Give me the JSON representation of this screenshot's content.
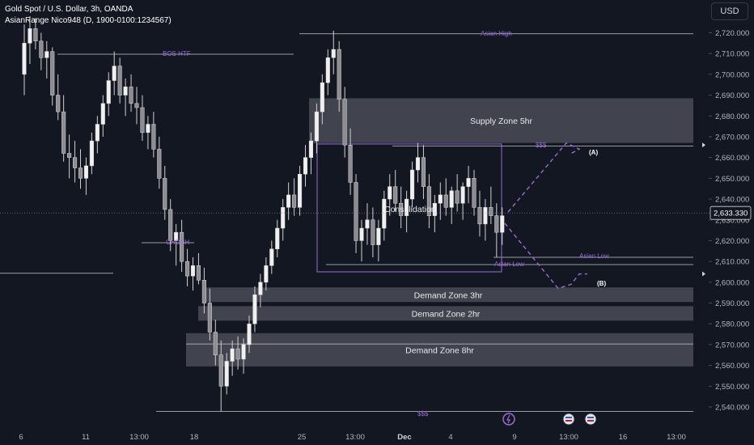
{
  "header": {
    "title": "Gold Spot / U.S. Dollar, 3h, OANDA",
    "indicator": "AsianRange Nico948 (D, 1900-0100:1234567)",
    "currency_button": "USD"
  },
  "colors": {
    "background": "#131722",
    "candle": "#e6e6e6",
    "wick": "#d0d0d0",
    "zone_fill": "#4a4c56",
    "zone_stroke": "#787b86",
    "purple": "#9a6bd8",
    "level_line": "#c8c9cf",
    "axis_text": "#b2b5be"
  },
  "chart_data": {
    "type": "candlestick",
    "title": "Gold Spot / U.S. Dollar, 3h, OANDA",
    "ylim": [
      2534,
      2732
    ],
    "y_ticks": [
      2540,
      2550,
      2560,
      2570,
      2580,
      2590,
      2600,
      2610,
      2620,
      2630,
      2640,
      2650,
      2660,
      2670,
      2680,
      2690,
      2700,
      2710,
      2720
    ],
    "y_tick_labels": [
      "2,540.000",
      "2,550.000",
      "2,560.000",
      "2,570.000",
      "2,580.000",
      "2,590.000",
      "2,600.000",
      "2,610.000",
      "2,620.000",
      "2,630.000",
      "2,640.000",
      "2,650.000",
      "2,660.000",
      "2,670.000",
      "2,680.000",
      "2,690.000",
      "2,700.000",
      "2,710.000",
      "2,720.000"
    ],
    "current_price": 2633.33,
    "current_price_label": "2,633.330",
    "x_tick_labels": [
      "6",
      "11",
      "13:00",
      "18",
      "25",
      "13:00",
      "Dec",
      "4",
      "9",
      "13:00",
      "16",
      "13:00"
    ],
    "grid": false,
    "levels": [
      {
        "label": "Asian High",
        "value": 2719.5
      },
      {
        "label": "BOS HTF",
        "value": 2709.7
      },
      {
        "label": "$$$",
        "value": 2665.5
      },
      {
        "label": "CHOCH",
        "value": 2619.0
      },
      {
        "label": "Asian Low",
        "value": 2612.0
      },
      {
        "label": "Asian Low",
        "value": 2608.5
      },
      {
        "label": "",
        "value": 2604.3
      },
      {
        "label": "",
        "value": 2570.3
      },
      {
        "label": "$$$",
        "value": 2537.8
      }
    ],
    "zones": [
      {
        "label": "Supply Zone 5hr",
        "low": 2667.0,
        "high": 2688.5
      },
      {
        "label": "Demand Zone 3hr",
        "low": 2590.5,
        "high": 2597.5
      },
      {
        "label": "Demand Zone 2hr",
        "low": 2581.5,
        "high": 2588.5
      },
      {
        "label": "Demand Zone 8hr",
        "low": 2559.5,
        "high": 2575.5
      }
    ],
    "box": {
      "label": "Consolidation",
      "low": 2605.0,
      "high": 2666.5
    },
    "scenario_labels": [
      "(A)",
      "(B)"
    ],
    "candles": [
      {
        "o": 2700,
        "h": 2724,
        "l": 2690,
        "c": 2715
      },
      {
        "o": 2715,
        "h": 2728,
        "l": 2705,
        "c": 2722
      },
      {
        "o": 2722,
        "h": 2727,
        "l": 2712,
        "c": 2716
      },
      {
        "o": 2716,
        "h": 2720,
        "l": 2702,
        "c": 2708
      },
      {
        "o": 2708,
        "h": 2716,
        "l": 2698,
        "c": 2711
      },
      {
        "o": 2711,
        "h": 2713,
        "l": 2685,
        "c": 2690
      },
      {
        "o": 2690,
        "h": 2700,
        "l": 2678,
        "c": 2682
      },
      {
        "o": 2682,
        "h": 2690,
        "l": 2658,
        "c": 2662
      },
      {
        "o": 2662,
        "h": 2671,
        "l": 2650,
        "c": 2660
      },
      {
        "o": 2660,
        "h": 2668,
        "l": 2648,
        "c": 2655
      },
      {
        "o": 2655,
        "h": 2664,
        "l": 2645,
        "c": 2650
      },
      {
        "o": 2650,
        "h": 2660,
        "l": 2642,
        "c": 2656
      },
      {
        "o": 2656,
        "h": 2672,
        "l": 2652,
        "c": 2668
      },
      {
        "o": 2668,
        "h": 2680,
        "l": 2662,
        "c": 2676
      },
      {
        "o": 2676,
        "h": 2690,
        "l": 2670,
        "c": 2686
      },
      {
        "o": 2686,
        "h": 2701,
        "l": 2680,
        "c": 2697
      },
      {
        "o": 2697,
        "h": 2711,
        "l": 2690,
        "c": 2704
      },
      {
        "o": 2704,
        "h": 2708,
        "l": 2686,
        "c": 2690
      },
      {
        "o": 2690,
        "h": 2698,
        "l": 2680,
        "c": 2694
      },
      {
        "o": 2694,
        "h": 2700,
        "l": 2682,
        "c": 2686
      },
      {
        "o": 2686,
        "h": 2694,
        "l": 2676,
        "c": 2684
      },
      {
        "o": 2684,
        "h": 2690,
        "l": 2668,
        "c": 2672
      },
      {
        "o": 2672,
        "h": 2680,
        "l": 2664,
        "c": 2676
      },
      {
        "o": 2676,
        "h": 2682,
        "l": 2660,
        "c": 2664
      },
      {
        "o": 2664,
        "h": 2670,
        "l": 2645,
        "c": 2650
      },
      {
        "o": 2650,
        "h": 2656,
        "l": 2630,
        "c": 2635
      },
      {
        "o": 2635,
        "h": 2640,
        "l": 2615,
        "c": 2620
      },
      {
        "o": 2620,
        "h": 2628,
        "l": 2608,
        "c": 2624
      },
      {
        "o": 2624,
        "h": 2630,
        "l": 2605,
        "c": 2610
      },
      {
        "o": 2610,
        "h": 2616,
        "l": 2598,
        "c": 2603
      },
      {
        "o": 2603,
        "h": 2612,
        "l": 2596,
        "c": 2608
      },
      {
        "o": 2608,
        "h": 2614,
        "l": 2599,
        "c": 2601
      },
      {
        "o": 2601,
        "h": 2607,
        "l": 2585,
        "c": 2590
      },
      {
        "o": 2590,
        "h": 2597,
        "l": 2572,
        "c": 2576
      },
      {
        "o": 2576,
        "h": 2582,
        "l": 2560,
        "c": 2565
      },
      {
        "o": 2565,
        "h": 2572,
        "l": 2538,
        "c": 2550
      },
      {
        "o": 2550,
        "h": 2566,
        "l": 2546,
        "c": 2562
      },
      {
        "o": 2562,
        "h": 2572,
        "l": 2555,
        "c": 2568
      },
      {
        "o": 2568,
        "h": 2574,
        "l": 2558,
        "c": 2563
      },
      {
        "o": 2563,
        "h": 2573,
        "l": 2556,
        "c": 2570
      },
      {
        "o": 2570,
        "h": 2584,
        "l": 2566,
        "c": 2580
      },
      {
        "o": 2580,
        "h": 2598,
        "l": 2576,
        "c": 2594
      },
      {
        "o": 2594,
        "h": 2604,
        "l": 2588,
        "c": 2600
      },
      {
        "o": 2600,
        "h": 2612,
        "l": 2596,
        "c": 2608
      },
      {
        "o": 2608,
        "h": 2620,
        "l": 2604,
        "c": 2616
      },
      {
        "o": 2616,
        "h": 2630,
        "l": 2612,
        "c": 2626
      },
      {
        "o": 2626,
        "h": 2640,
        "l": 2620,
        "c": 2636
      },
      {
        "o": 2636,
        "h": 2648,
        "l": 2630,
        "c": 2642
      },
      {
        "o": 2642,
        "h": 2650,
        "l": 2632,
        "c": 2636
      },
      {
        "o": 2636,
        "h": 2656,
        "l": 2632,
        "c": 2652
      },
      {
        "o": 2652,
        "h": 2666,
        "l": 2646,
        "c": 2660
      },
      {
        "o": 2660,
        "h": 2672,
        "l": 2652,
        "c": 2668
      },
      {
        "o": 2668,
        "h": 2686,
        "l": 2662,
        "c": 2682
      },
      {
        "o": 2682,
        "h": 2700,
        "l": 2676,
        "c": 2696
      },
      {
        "o": 2696,
        "h": 2712,
        "l": 2690,
        "c": 2708
      },
      {
        "o": 2708,
        "h": 2721,
        "l": 2700,
        "c": 2712
      },
      {
        "o": 2712,
        "h": 2716,
        "l": 2682,
        "c": 2688
      },
      {
        "o": 2688,
        "h": 2694,
        "l": 2660,
        "c": 2666
      },
      {
        "o": 2666,
        "h": 2674,
        "l": 2642,
        "c": 2648
      },
      {
        "o": 2648,
        "h": 2652,
        "l": 2614,
        "c": 2620
      },
      {
        "o": 2620,
        "h": 2630,
        "l": 2610,
        "c": 2626
      },
      {
        "o": 2626,
        "h": 2638,
        "l": 2618,
        "c": 2630
      },
      {
        "o": 2630,
        "h": 2636,
        "l": 2612,
        "c": 2618
      },
      {
        "o": 2618,
        "h": 2630,
        "l": 2610,
        "c": 2626
      },
      {
        "o": 2626,
        "h": 2644,
        "l": 2620,
        "c": 2640
      },
      {
        "o": 2640,
        "h": 2652,
        "l": 2632,
        "c": 2646
      },
      {
        "o": 2646,
        "h": 2654,
        "l": 2634,
        "c": 2638
      },
      {
        "o": 2638,
        "h": 2646,
        "l": 2626,
        "c": 2632
      },
      {
        "o": 2632,
        "h": 2644,
        "l": 2624,
        "c": 2640
      },
      {
        "o": 2640,
        "h": 2658,
        "l": 2636,
        "c": 2654
      },
      {
        "o": 2654,
        "h": 2667,
        "l": 2648,
        "c": 2660
      },
      {
        "o": 2660,
        "h": 2666,
        "l": 2640,
        "c": 2646
      },
      {
        "o": 2646,
        "h": 2652,
        "l": 2626,
        "c": 2632
      },
      {
        "o": 2632,
        "h": 2642,
        "l": 2624,
        "c": 2638
      },
      {
        "o": 2638,
        "h": 2648,
        "l": 2630,
        "c": 2642
      },
      {
        "o": 2642,
        "h": 2650,
        "l": 2632,
        "c": 2636
      },
      {
        "o": 2636,
        "h": 2646,
        "l": 2628,
        "c": 2644
      },
      {
        "o": 2644,
        "h": 2652,
        "l": 2634,
        "c": 2638
      },
      {
        "o": 2638,
        "h": 2648,
        "l": 2630,
        "c": 2646
      },
      {
        "o": 2646,
        "h": 2656,
        "l": 2638,
        "c": 2650
      },
      {
        "o": 2650,
        "h": 2654,
        "l": 2632,
        "c": 2636
      },
      {
        "o": 2636,
        "h": 2644,
        "l": 2622,
        "c": 2628
      },
      {
        "o": 2628,
        "h": 2640,
        "l": 2620,
        "c": 2636
      },
      {
        "o": 2636,
        "h": 2646,
        "l": 2628,
        "c": 2632
      },
      {
        "o": 2632,
        "h": 2638,
        "l": 2612,
        "c": 2624
      },
      {
        "o": 2624,
        "h": 2636,
        "l": 2618,
        "c": 2632
      }
    ]
  },
  "annotations": {
    "asian_high": "Asian High",
    "bos_htf": "BOS HTF",
    "liquidity_top": "$$$",
    "choch": "CHOCH",
    "asian_low_right": "Asian Low",
    "asian_low_left": "Asian Low",
    "liquidity_bottom": "$$$",
    "consolidation": "Consolidation",
    "scenario_a": "(A)",
    "scenario_b": "(B)"
  }
}
